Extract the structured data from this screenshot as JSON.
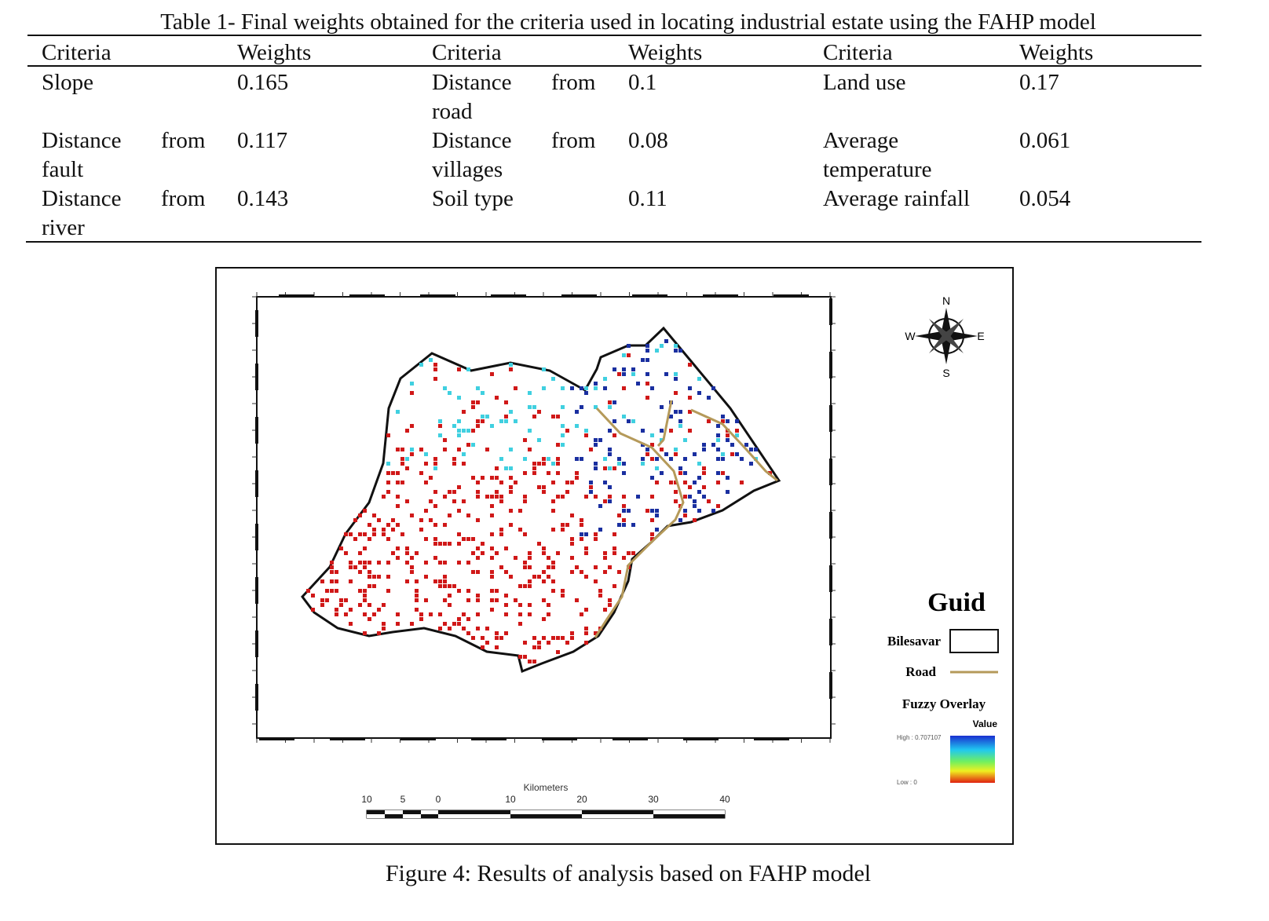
{
  "table": {
    "title": "Table 1- Final weights obtained for the criteria used in locating industrial estate using the FAHP model",
    "headers": [
      "Criteria",
      "Weights",
      "Criteria",
      "Weights",
      "Criteria",
      "Weights"
    ],
    "rows": [
      [
        {
          "l1": "Slope",
          "from": "",
          "l2": "",
          "w": "0.165"
        },
        {
          "l1": "Distance",
          "from": "from",
          "l2": "road",
          "w": "0.1"
        },
        {
          "l1": "Land use",
          "from": "",
          "l2": "",
          "w": "0.17"
        }
      ],
      [
        {
          "l1": "Distance",
          "from": "from",
          "l2": "fault",
          "w": "0.117"
        },
        {
          "l1": "Distance",
          "from": "from",
          "l2": "villages",
          "w": "0.08"
        },
        {
          "l1": "Average",
          "from": "",
          "l2": "temperature",
          "w": "0.061"
        }
      ],
      [
        {
          "l1": "Distance",
          "from": "from",
          "l2": "river",
          "w": "0.143"
        },
        {
          "l1": "Soil type",
          "from": "",
          "l2": "",
          "w": "0.11"
        },
        {
          "l1": "Average rainfall",
          "from": "",
          "l2": "",
          "w": "0.054"
        }
      ]
    ]
  },
  "figure": {
    "caption": "Figure 4: Results of analysis based on FAHP model",
    "compass": {
      "n": "N",
      "s": "S",
      "w": "W",
      "e": "E"
    },
    "legend": {
      "title": "Guid",
      "boundary": "Bilesavar",
      "road": "Road",
      "overlay": "Fuzzy Overlay",
      "value": "Value",
      "high": "High : 0.707107",
      "low": "Low : 0"
    },
    "scale": {
      "unit": "Kilometers",
      "ticks": [
        "10",
        "5",
        "0",
        "10",
        "20",
        "30",
        "40"
      ]
    },
    "colors": {
      "road": "#b59a5a",
      "high": "#1a2fa0",
      "mid": "#40d0e0",
      "low": "#d01818"
    }
  }
}
